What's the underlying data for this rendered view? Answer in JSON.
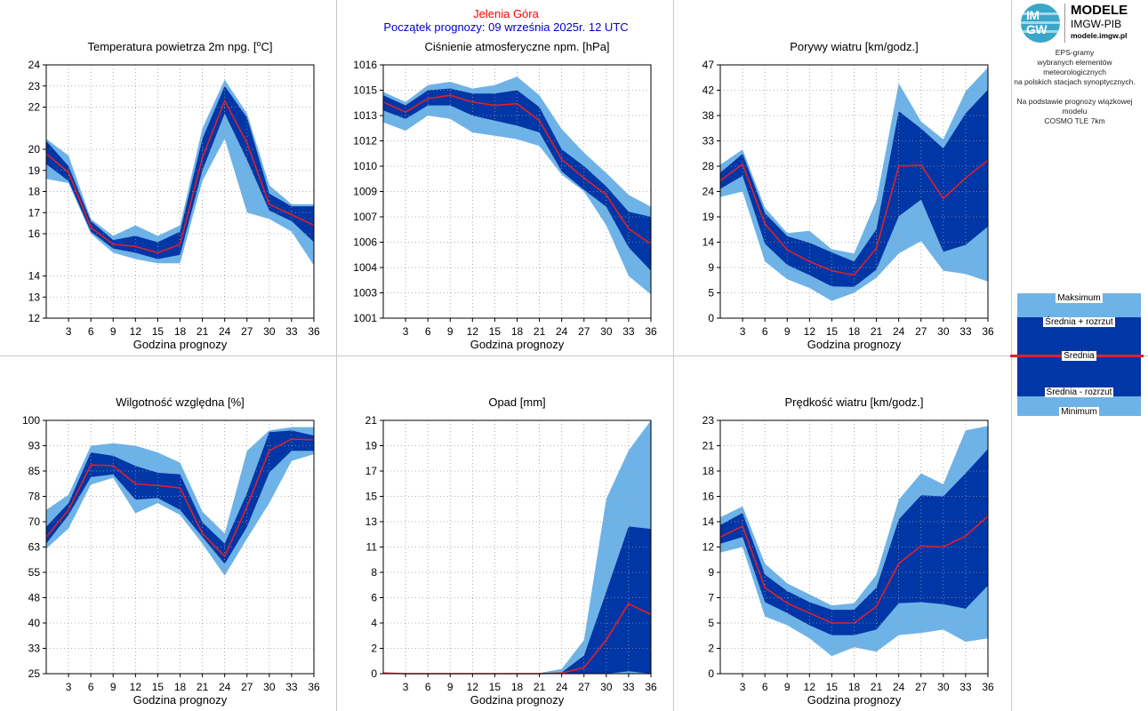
{
  "header": {
    "station": "Jelenia Góra",
    "start": "Początek prognozy: 09 września 2025r. 12 UTC"
  },
  "logo": {
    "monogram_top": "IM",
    "monogram_bottom": "GW",
    "title": "MODELE",
    "subtitle": "IMGW-PIB",
    "url": "modele.imgw.pl"
  },
  "description": {
    "line1": "EPS-gramy",
    "line2": "wybranych elementów meteorologicznych",
    "line3": "na polskich stacjach  synoptycznych.",
    "line4": "Na podstawie prognozy wiązkowej modelu",
    "line5": "COSMO TLE 7km"
  },
  "legend": {
    "max": "Maksimum",
    "mean_plus": "Średnia + rozrzut",
    "mean": "Średnia",
    "mean_minus": "Średnia - rozrzut",
    "min": "Minimum"
  },
  "colors": {
    "outer_band": "#6db3e8",
    "inner_band": "#0036a6",
    "mean_line": "#e0202a",
    "station": "#ff0000",
    "start": "#0000cc"
  },
  "chart_data": [
    {
      "type": "area",
      "title": "Temperatura powietrza 2m npg. [°C]",
      "title_main": "Temperatura powietrza 2m npg. [",
      "title_sup": "o",
      "title_end": "C]",
      "xlabel": "Godzina prognozy",
      "ylabel": "",
      "x": [
        0,
        3,
        6,
        9,
        12,
        15,
        18,
        21,
        24,
        27,
        30,
        33,
        36
      ],
      "xticks": [
        3,
        6,
        9,
        12,
        15,
        18,
        21,
        24,
        27,
        30,
        33,
        36
      ],
      "ylim": [
        12,
        24
      ],
      "yticks": [
        12,
        13,
        14,
        16,
        17,
        18,
        19,
        20,
        22,
        23,
        24
      ],
      "yticklabels": [
        "12",
        "13",
        "14",
        "16",
        "17",
        "18",
        "19",
        "20",
        "22",
        "23",
        "24"
      ],
      "grid": true,
      "series": [
        {
          "name": "Maksimum",
          "values": [
            20.5,
            19.7,
            16.7,
            15.9,
            16.4,
            15.9,
            16.4,
            21.0,
            23.3,
            21.7,
            18.3,
            17.4,
            17.4
          ]
        },
        {
          "name": "Średnia + rozrzut",
          "values": [
            20.4,
            19.2,
            16.6,
            15.7,
            15.9,
            15.6,
            16.1,
            20.5,
            23.0,
            21.5,
            17.9,
            17.3,
            17.3
          ]
        },
        {
          "name": "Średnia",
          "values": [
            19.8,
            18.9,
            16.3,
            15.5,
            15.4,
            15.1,
            15.5,
            19.6,
            22.3,
            20.3,
            17.4,
            16.9,
            16.4
          ]
        },
        {
          "name": "Średnia - rozrzut",
          "values": [
            19.3,
            18.5,
            16.1,
            15.3,
            15.1,
            14.8,
            15.0,
            19.0,
            21.7,
            19.5,
            17.1,
            16.6,
            15.6
          ]
        },
        {
          "name": "Minimum",
          "values": [
            18.6,
            18.4,
            16.0,
            15.1,
            14.8,
            14.6,
            14.6,
            18.5,
            20.5,
            17.0,
            16.7,
            16.1,
            14.5
          ]
        }
      ]
    },
    {
      "type": "area",
      "title": "Ciśnienie atmosferyczne npm. [hPa]",
      "xlabel": "Godzina prognozy",
      "ylabel": "",
      "x": [
        0,
        3,
        6,
        9,
        12,
        15,
        18,
        21,
        24,
        27,
        30,
        33,
        36
      ],
      "xticks": [
        3,
        6,
        9,
        12,
        15,
        18,
        21,
        24,
        27,
        30,
        33,
        36
      ],
      "ylim": [
        1001,
        1016
      ],
      "yticks": [
        1001,
        1002.5,
        1004,
        1005.5,
        1007,
        1008.5,
        1010,
        1011.5,
        1013,
        1014.5,
        1016
      ],
      "yticklabels": [
        "1001",
        "1003",
        "1004",
        "1006",
        "1007",
        "1009",
        "1010",
        "1012",
        "1013",
        "1015",
        "1016"
      ],
      "grid": true,
      "series": [
        {
          "name": "Maksimum",
          "values": [
            1014.4,
            1013.8,
            1014.8,
            1015.0,
            1014.6,
            1014.8,
            1015.3,
            1014.2,
            1012.2,
            1010.8,
            1009.6,
            1008.3,
            1007.6
          ]
        },
        {
          "name": "Średnia + rozrzut",
          "values": [
            1014.2,
            1013.6,
            1014.5,
            1014.6,
            1014.3,
            1014.3,
            1014.5,
            1013.5,
            1011.0,
            1010.0,
            1008.8,
            1007.3,
            1007.0
          ]
        },
        {
          "name": "Średnia",
          "values": [
            1013.8,
            1013.2,
            1014.0,
            1014.2,
            1013.8,
            1013.6,
            1013.7,
            1012.7,
            1010.4,
            1009.3,
            1008.3,
            1006.3,
            1005.4
          ]
        },
        {
          "name": "Średnia - rozrzut",
          "values": [
            1013.3,
            1012.8,
            1013.6,
            1013.6,
            1013.0,
            1012.7,
            1012.4,
            1012.0,
            1009.7,
            1008.6,
            1007.6,
            1005.2,
            1003.8
          ]
        },
        {
          "name": "Minimum",
          "values": [
            1012.6,
            1012.1,
            1013.0,
            1012.8,
            1012.0,
            1011.8,
            1011.6,
            1011.2,
            1009.5,
            1008.5,
            1006.5,
            1003.5,
            1002.4
          ]
        }
      ]
    },
    {
      "type": "area",
      "title": "Porywy wiatru [km/godz.]",
      "xlabel": "Godzina prognozy",
      "ylabel": "",
      "x": [
        0,
        3,
        6,
        9,
        12,
        15,
        18,
        21,
        24,
        27,
        30,
        33,
        36
      ],
      "xticks": [
        3,
        6,
        9,
        12,
        15,
        18,
        21,
        24,
        27,
        30,
        33,
        36
      ],
      "ylim": [
        0,
        47
      ],
      "yticks": [
        0,
        4.7,
        9.4,
        14.1,
        18.8,
        23.5,
        28.2,
        32.9,
        37.6,
        42.3,
        47
      ],
      "yticklabels": [
        "0",
        "5",
        "9",
        "14",
        "19",
        "24",
        "28",
        "33",
        "38",
        "42",
        "47"
      ],
      "grid": true,
      "series": [
        {
          "name": "Maksimum",
          "values": [
            28.5,
            31.3,
            20.5,
            15.8,
            16.2,
            12.8,
            12.0,
            21.8,
            43.6,
            36.5,
            33.2,
            42.1,
            46.5
          ]
        },
        {
          "name": "Średnia + rozrzut",
          "values": [
            27.0,
            30.5,
            19.5,
            15.2,
            14.0,
            12.2,
            10.5,
            16.5,
            38.4,
            35.2,
            31.5,
            38.0,
            42.4
          ]
        },
        {
          "name": "Średnia",
          "values": [
            25.5,
            28.6,
            17.5,
            12.7,
            10.5,
            8.8,
            8.0,
            13.0,
            28.2,
            28.4,
            22.2,
            26.0,
            29.3
          ]
        },
        {
          "name": "Średnia - rozrzut",
          "values": [
            24.0,
            26.4,
            13.8,
            9.9,
            8.0,
            5.9,
            5.8,
            9.0,
            18.9,
            22.0,
            12.3,
            13.6,
            17.0
          ]
        },
        {
          "name": "Minimum",
          "values": [
            22.5,
            23.5,
            10.5,
            7.2,
            5.6,
            3.2,
            4.7,
            7.5,
            12.0,
            14.3,
            8.8,
            8.2,
            6.8
          ]
        }
      ]
    },
    {
      "type": "area",
      "title": "Wilgotność względna [%]",
      "xlabel": "Godzina prognozy",
      "ylabel": "",
      "x": [
        0,
        3,
        6,
        9,
        12,
        15,
        18,
        21,
        24,
        27,
        30,
        33,
        36
      ],
      "xticks": [
        3,
        6,
        9,
        12,
        15,
        18,
        21,
        24,
        27,
        30,
        33,
        36
      ],
      "ylim": [
        25,
        100
      ],
      "yticks": [
        25,
        32.5,
        40,
        47.5,
        55,
        62.5,
        70,
        77.5,
        85,
        92.5,
        100
      ],
      "yticklabels": [
        "25",
        "33",
        "40",
        "48",
        "55",
        "63",
        "70",
        "78",
        "85",
        "93",
        "100"
      ],
      "grid": true,
      "series": [
        {
          "name": "Maksimum",
          "values": [
            73.5,
            78.0,
            92.5,
            93.2,
            92.5,
            90.5,
            87.5,
            73.0,
            66.5,
            91.0,
            97.0,
            98.0,
            98.0
          ]
        },
        {
          "name": "Średnia + rozrzut",
          "values": [
            68.5,
            75.5,
            90.5,
            89.5,
            86.5,
            84.5,
            84.0,
            69.8,
            63.5,
            78.5,
            96.5,
            97.0,
            95.5
          ]
        },
        {
          "name": "Średnia",
          "values": [
            65.5,
            73.5,
            86.8,
            86.6,
            81.2,
            80.7,
            80.0,
            66.5,
            59.8,
            74.5,
            91.0,
            94.5,
            94.2
          ]
        },
        {
          "name": "Średnia - rozrzut",
          "values": [
            63.5,
            72.0,
            83.2,
            84.0,
            76.5,
            77.0,
            73.5,
            65.5,
            57.5,
            68.5,
            84.5,
            91.0,
            91.0
          ]
        },
        {
          "name": "Minimum",
          "values": [
            62.0,
            68.0,
            81.0,
            83.0,
            72.5,
            75.5,
            72.0,
            63.5,
            54.0,
            65.0,
            75.5,
            88.0,
            90.0
          ]
        }
      ]
    },
    {
      "type": "area",
      "title": "Opad [mm]",
      "xlabel": "Godzina prognozy",
      "ylabel": "",
      "x": [
        0,
        3,
        6,
        9,
        12,
        15,
        18,
        21,
        24,
        27,
        30,
        33,
        36
      ],
      "xticks": [
        3,
        6,
        9,
        12,
        15,
        18,
        21,
        24,
        27,
        30,
        33,
        36
      ],
      "ylim": [
        0,
        21
      ],
      "yticks": [
        0,
        2.1,
        4.2,
        6.3,
        8.4,
        10.5,
        12.6,
        14.7,
        16.8,
        18.9,
        21
      ],
      "yticklabels": [
        "0",
        "2",
        "4",
        "6",
        "8",
        "11",
        "13",
        "15",
        "17",
        "19",
        "21"
      ],
      "grid": true,
      "series": [
        {
          "name": "Maksimum",
          "values": [
            0.1,
            0,
            0,
            0,
            0,
            0,
            0,
            0.05,
            0.4,
            2.8,
            14.5,
            18.5,
            21.0
          ]
        },
        {
          "name": "Średnia + rozrzut",
          "values": [
            0.05,
            0,
            0,
            0,
            0,
            0,
            0,
            0,
            0.1,
            1.5,
            6.8,
            12.2,
            12.0
          ]
        },
        {
          "name": "Średnia",
          "values": [
            0.05,
            0,
            0,
            0,
            0,
            0,
            0,
            0,
            0.05,
            0.5,
            2.8,
            5.8,
            4.9
          ]
        },
        {
          "name": "Średnia - rozrzut",
          "values": [
            0,
            0,
            0,
            0,
            0,
            0,
            0,
            0,
            0,
            0,
            0,
            0.2,
            0
          ]
        },
        {
          "name": "Minimum",
          "values": [
            0,
            0,
            0,
            0,
            0,
            0,
            0,
            0,
            0,
            0,
            0,
            0,
            0
          ]
        }
      ]
    },
    {
      "type": "area",
      "title": "Prędkość wiatru [km/godz.]",
      "xlabel": "Godzina prognozy",
      "ylabel": "",
      "x": [
        0,
        3,
        6,
        9,
        12,
        15,
        18,
        21,
        24,
        27,
        30,
        33,
        36
      ],
      "xticks": [
        3,
        6,
        9,
        12,
        15,
        18,
        21,
        24,
        27,
        30,
        33,
        36
      ],
      "ylim": [
        0,
        23
      ],
      "yticks": [
        0,
        2.3,
        4.6,
        6.9,
        9.2,
        11.5,
        13.8,
        16.1,
        18.4,
        20.7,
        23
      ],
      "yticklabels": [
        "0",
        "2",
        "5",
        "7",
        "9",
        "12",
        "14",
        "16",
        "18",
        "21",
        "23"
      ],
      "grid": true,
      "series": [
        {
          "name": "Maksimum",
          "values": [
            14.2,
            15.2,
            10.0,
            8.2,
            7.2,
            6.2,
            6.4,
            9.0,
            15.8,
            18.2,
            17.2,
            22.1,
            22.5
          ]
        },
        {
          "name": "Średnia + rozrzut",
          "values": [
            13.5,
            14.6,
            9.0,
            7.5,
            6.5,
            5.8,
            5.8,
            7.8,
            14.0,
            16.2,
            16.1,
            18.2,
            20.4
          ]
        },
        {
          "name": "Średnia",
          "values": [
            12.4,
            13.4,
            7.8,
            6.4,
            5.5,
            4.6,
            4.6,
            6.1,
            10.0,
            11.6,
            11.5,
            12.5,
            14.3
          ]
        },
        {
          "name": "Średnia - rozrzut",
          "values": [
            11.8,
            12.4,
            6.5,
            5.5,
            4.4,
            3.5,
            3.5,
            4.0,
            6.4,
            6.5,
            6.3,
            5.9,
            8.0
          ]
        },
        {
          "name": "Minimum",
          "values": [
            11.0,
            11.5,
            5.2,
            4.4,
            3.2,
            1.6,
            2.4,
            2.0,
            3.5,
            3.7,
            4.0,
            2.9,
            3.2
          ]
        }
      ]
    }
  ]
}
